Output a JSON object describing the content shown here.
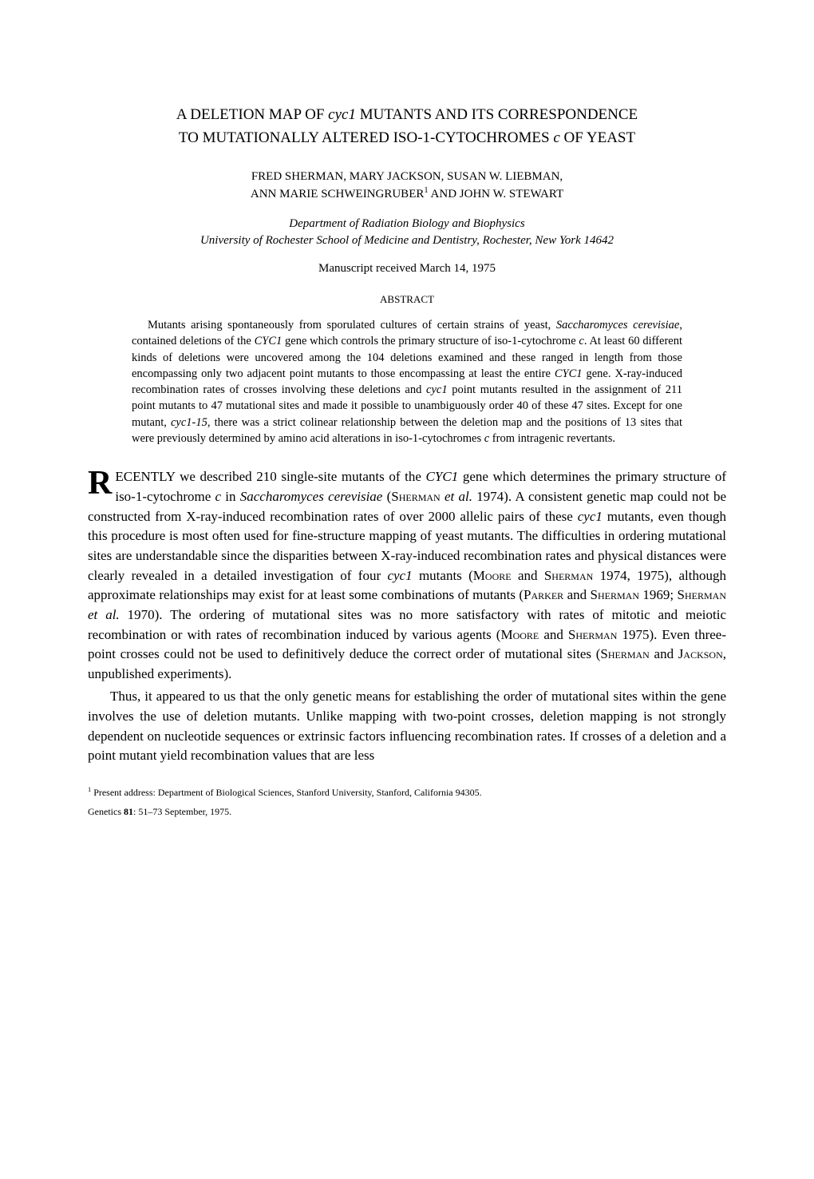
{
  "title": {
    "line1": "A DELETION MAP OF ",
    "line1_italic": "cyc1",
    "line1_cont": " MUTANTS AND ITS CORRESPONDENCE",
    "line2": "TO MUTATIONALLY ALTERED ISO-1-CYTOCHROMES ",
    "line2_italic": "c",
    "line2_cont": " OF YEAST"
  },
  "authors": {
    "line1": "FRED SHERMAN, MARY JACKSON, SUSAN W. LIEBMAN,",
    "line2_pre": "ANN MARIE SCHWEINGRUBER",
    "line2_sup": "1",
    "line2_and": " AND ",
    "line2_post": "JOHN W. STEWART"
  },
  "affiliation": {
    "line1": "Department of Radiation Biology and Biophysics",
    "line2": "University of Rochester School of Medicine and Dentistry, Rochester, New York 14642"
  },
  "received": "Manuscript received March 14, 1975",
  "abstract": {
    "heading": "ABSTRACT",
    "p1_a": "Mutants arising spontaneously from sporulated cultures of certain strains of yeast, ",
    "p1_i1": "Saccharomyces cerevisiae",
    "p1_b": ", contained deletions of the ",
    "p1_i2": "CYC1",
    "p1_c": " gene which controls the primary structure of iso-1-cytochrome ",
    "p1_i3": "c",
    "p1_d": ". At least 60 different kinds of deletions were uncovered among the 104 deletions examined and these ranged in length from those encompassing only two adjacent point mutants to those encompassing at least the entire ",
    "p1_i4": "CYC1",
    "p1_e": " gene. X-ray-induced recombination rates of crosses involving these deletions and ",
    "p1_i5": "cyc1",
    "p1_f": " point mutants resulted in the assignment of 211 point mutants to 47 mutational sites and made it possible to unambiguously order 40 of these 47 sites. Except for one mutant, ",
    "p1_i6": "cyc1-15",
    "p1_g": ", there was a strict colinear relationship between the deletion map and the positions of 13 sites that were previously determined by amino acid alterations in iso-1-cytochromes ",
    "p1_i7": "c",
    "p1_h": " from intragenic revertants."
  },
  "body": {
    "p1_drop": "R",
    "p1_a": "ECENTLY we described 210 single-site mutants of the ",
    "p1_i1": "CYC1",
    "p1_b": " gene which determines the primary structure of iso-1-cytochrome ",
    "p1_i2": "c",
    "p1_c": " in ",
    "p1_i3": "Saccharomyces cerevisiae",
    "p1_d": " (",
    "p1_sc1": "Sherman",
    "p1_e": " ",
    "p1_i4": "et al.",
    "p1_f": " 1974). A consistent genetic map could not be constructed from X-ray-induced recombination rates of over 2000 allelic pairs of these ",
    "p1_i5": "cyc1",
    "p1_g": " mutants, even though this procedure is most often used for fine-structure mapping of yeast mutants. The difficulties in ordering mutational sites are understandable since the disparities between X-ray-induced recombination rates and physical distances were clearly revealed in a detailed investigation of four ",
    "p1_i6": "cyc1",
    "p1_h": " mutants (",
    "p1_sc2": "Moore",
    "p1_i": " and ",
    "p1_sc3": "Sherman",
    "p1_j": " 1974, 1975), although approximate relationships may exist for at least some combinations of mutants (",
    "p1_sc4": "Parker",
    "p1_k": " and ",
    "p1_sc5": "Sherman",
    "p1_l": " 1969; ",
    "p1_sc6": "Sherman",
    "p1_m": " ",
    "p1_i7": "et al.",
    "p1_n": " 1970). The ordering of mutational sites was no more satisfactory with rates of mitotic and meiotic recombination or with rates of recombination induced by various agents (",
    "p1_sc7": "Moore",
    "p1_o": " and ",
    "p1_sc8": "Sherman",
    "p1_p": " 1975). Even three-point crosses could not be used to definitively deduce the correct order of mutational sites (",
    "p1_sc9": "Sherman",
    "p1_q": " and ",
    "p1_sc10": "Jackson",
    "p1_r": ", unpublished experiments).",
    "p2": "Thus, it appeared to us that the only genetic means for establishing the order of mutational sites within the gene involves the use of deletion mutants. Unlike mapping with two-point crosses, deletion mapping is not strongly dependent on nucleotide sequences or extrinsic factors influencing recombination rates. If crosses of a deletion and a point mutant yield recombination values that are less"
  },
  "footnote": {
    "sup": "1",
    "text": " Present address: Department of Biological Sciences, Stanford University, Stanford, California 94305."
  },
  "citation": {
    "a": "Genetics ",
    "b": "81",
    "c": ": 51–73 September, 1975."
  }
}
